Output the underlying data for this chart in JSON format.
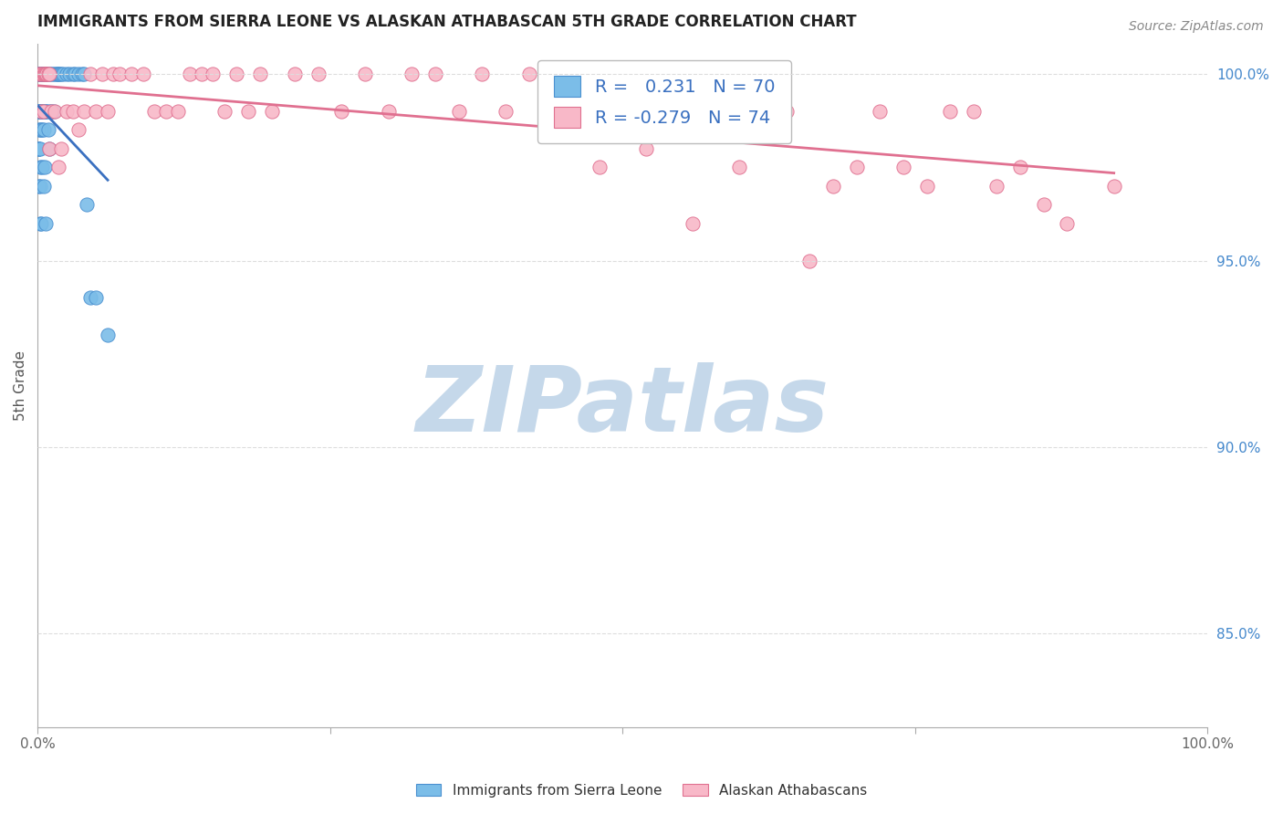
{
  "title": "IMMIGRANTS FROM SIERRA LEONE VS ALASKAN ATHABASCAN 5TH GRADE CORRELATION CHART",
  "source_text": "Source: ZipAtlas.com",
  "watermark": "ZIPatlas",
  "ylabel": "5th Grade",
  "series": [
    {
      "label": "Immigrants from Sierra Leone",
      "color": "#7bbde8",
      "edge_color": "#4a90d0",
      "R": 0.231,
      "N": 70,
      "trend_color": "#3a70c0",
      "x": [
        0.001,
        0.001,
        0.001,
        0.001,
        0.001,
        0.001,
        0.001,
        0.001,
        0.001,
        0.001,
        0.002,
        0.002,
        0.002,
        0.002,
        0.002,
        0.002,
        0.002,
        0.002,
        0.002,
        0.002,
        0.003,
        0.003,
        0.003,
        0.003,
        0.003,
        0.003,
        0.004,
        0.004,
        0.004,
        0.004,
        0.005,
        0.005,
        0.005,
        0.005,
        0.005,
        0.006,
        0.006,
        0.006,
        0.007,
        0.007,
        0.007,
        0.008,
        0.008,
        0.009,
        0.009,
        0.01,
        0.01,
        0.01,
        0.012,
        0.012,
        0.013,
        0.014,
        0.015,
        0.016,
        0.017,
        0.018,
        0.019,
        0.02,
        0.022,
        0.025,
        0.027,
        0.03,
        0.032,
        0.035,
        0.038,
        0.04,
        0.042,
        0.045,
        0.05,
        0.06
      ],
      "y": [
        1.0,
        1.0,
        0.99,
        0.99,
        0.99,
        0.985,
        0.98,
        0.98,
        0.98,
        0.97,
        1.0,
        1.0,
        1.0,
        0.99,
        0.99,
        0.985,
        0.98,
        0.975,
        0.97,
        0.96,
        1.0,
        1.0,
        0.99,
        0.99,
        0.985,
        0.96,
        1.0,
        0.99,
        0.985,
        0.975,
        1.0,
        1.0,
        0.99,
        0.985,
        0.97,
        1.0,
        0.99,
        0.975,
        1.0,
        0.99,
        0.96,
        1.0,
        0.99,
        1.0,
        0.985,
        1.0,
        0.99,
        0.98,
        1.0,
        0.99,
        1.0,
        0.99,
        1.0,
        1.0,
        1.0,
        1.0,
        1.0,
        1.0,
        1.0,
        1.0,
        1.0,
        1.0,
        1.0,
        1.0,
        1.0,
        1.0,
        0.965,
        0.94,
        0.94,
        0.93
      ]
    },
    {
      "label": "Alaskan Athabascans",
      "color": "#f8b8c8",
      "edge_color": "#e07090",
      "R": -0.279,
      "N": 74,
      "trend_color": "#e07090",
      "x": [
        0.001,
        0.002,
        0.003,
        0.004,
        0.005,
        0.005,
        0.006,
        0.007,
        0.008,
        0.009,
        0.01,
        0.01,
        0.012,
        0.015,
        0.018,
        0.02,
        0.025,
        0.03,
        0.035,
        0.04,
        0.045,
        0.05,
        0.055,
        0.06,
        0.065,
        0.07,
        0.08,
        0.09,
        0.1,
        0.11,
        0.12,
        0.13,
        0.14,
        0.15,
        0.16,
        0.17,
        0.18,
        0.19,
        0.2,
        0.22,
        0.24,
        0.26,
        0.28,
        0.3,
        0.32,
        0.34,
        0.36,
        0.38,
        0.4,
        0.42,
        0.44,
        0.46,
        0.48,
        0.5,
        0.52,
        0.54,
        0.56,
        0.58,
        0.6,
        0.62,
        0.64,
        0.66,
        0.68,
        0.7,
        0.72,
        0.74,
        0.76,
        0.78,
        0.8,
        0.82,
        0.84,
        0.86,
        0.88,
        0.92
      ],
      "y": [
        1.0,
        1.0,
        0.99,
        1.0,
        1.0,
        0.99,
        1.0,
        1.0,
        1.0,
        1.0,
        0.98,
        1.0,
        0.99,
        0.99,
        0.975,
        0.98,
        0.99,
        0.99,
        0.985,
        0.99,
        1.0,
        0.99,
        1.0,
        0.99,
        1.0,
        1.0,
        1.0,
        1.0,
        0.99,
        0.99,
        0.99,
        1.0,
        1.0,
        1.0,
        0.99,
        1.0,
        0.99,
        1.0,
        0.99,
        1.0,
        1.0,
        0.99,
        1.0,
        0.99,
        1.0,
        1.0,
        0.99,
        1.0,
        0.99,
        1.0,
        0.99,
        1.0,
        0.975,
        0.99,
        0.98,
        0.99,
        0.96,
        0.99,
        0.975,
        0.99,
        0.99,
        0.95,
        0.97,
        0.975,
        0.99,
        0.975,
        0.97,
        0.99,
        0.99,
        0.97,
        0.975,
        0.965,
        0.96,
        0.97
      ]
    }
  ],
  "xlim": [
    0.0,
    1.0
  ],
  "ylim": [
    0.825,
    1.008
  ],
  "yticks_right": [
    0.85,
    0.9,
    0.95,
    1.0
  ],
  "ytick_labels_right": [
    "85.0%",
    "90.0%",
    "95.0%",
    "100.0%"
  ],
  "background_color": "#ffffff",
  "grid_color": "#dddddd",
  "title_fontsize": 12,
  "watermark_color": "#c5d8ea",
  "watermark_fontsize": 72,
  "legend_R_color": "#3a70c0",
  "legend_N_color": "#3a70c0"
}
